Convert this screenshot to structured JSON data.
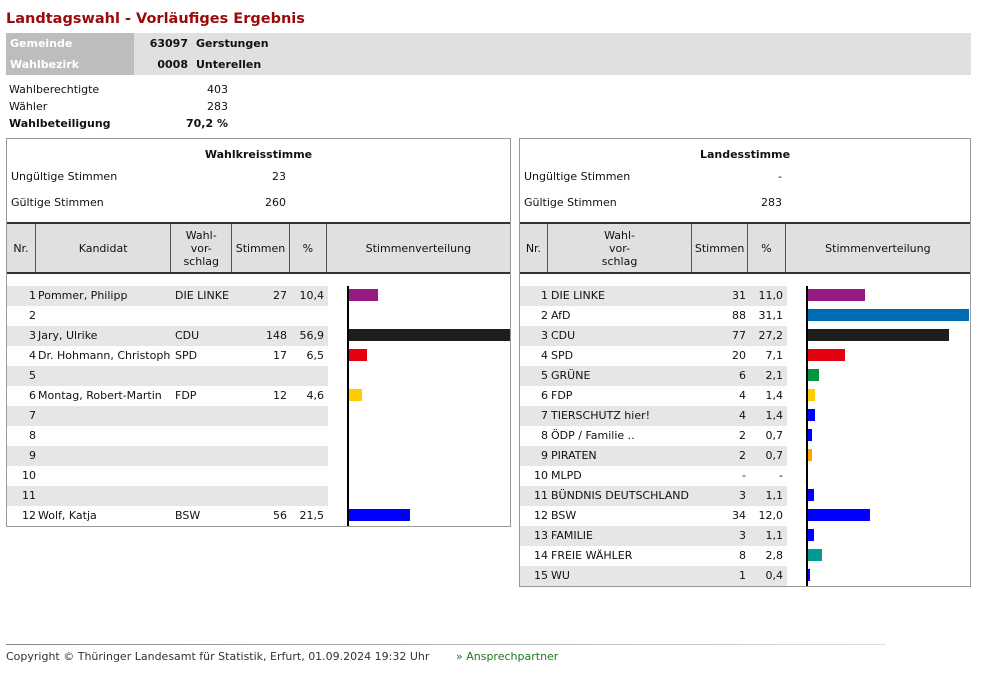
{
  "title": "Landtagswahl - Vorläufiges Ergebnis",
  "header": {
    "gemeinde_label": "Gemeinde",
    "gemeinde_nr": "63097",
    "gemeinde_name": "Gerstungen",
    "bezirk_label": "Wahlbezirk",
    "bezirk_nr": "0008",
    "bezirk_name": "Unterellen"
  },
  "stats": [
    {
      "label": "Wahlberechtigte",
      "value": "403"
    },
    {
      "label": "Wähler",
      "value": "283"
    },
    {
      "label": "Wahlbeteiligung",
      "value": "70,2 %"
    }
  ],
  "wahlkreis": {
    "title": "Wahlkreisstimme",
    "invalid_label": "Ungültige Stimmen",
    "invalid": "23",
    "valid_label": "Gültige Stimmen",
    "valid": "260",
    "columns": [
      "Nr.",
      "Kandidat",
      "Wahl-\nvor-\nschlag",
      "Stimmen",
      "%",
      "Stimmenverteilung"
    ],
    "rows": [
      {
        "nr": "1",
        "kandidat": "Pommer, Philipp",
        "partei": "DIE LINKE",
        "stimmen": "27",
        "pct": "10,4",
        "share": 10.4,
        "color": "#951b81"
      },
      {
        "nr": "2",
        "kandidat": "",
        "partei": "",
        "stimmen": "",
        "pct": "",
        "share": 0,
        "color": ""
      },
      {
        "nr": "3",
        "kandidat": "Jary, Ulrike",
        "partei": "CDU",
        "stimmen": "148",
        "pct": "56,9",
        "share": 56.9,
        "color": "#1e1e1e"
      },
      {
        "nr": "4",
        "kandidat": "Dr. Hohmann, Christoph",
        "partei": "SPD",
        "stimmen": "17",
        "pct": "6,5",
        "share": 6.5,
        "color": "#e3000f"
      },
      {
        "nr": "5",
        "kandidat": "",
        "partei": "",
        "stimmen": "",
        "pct": "",
        "share": 0,
        "color": ""
      },
      {
        "nr": "6",
        "kandidat": "Montag, Robert-Martin",
        "partei": "FDP",
        "stimmen": "12",
        "pct": "4,6",
        "share": 4.6,
        "color": "#ffcc00"
      },
      {
        "nr": "7",
        "kandidat": "",
        "partei": "",
        "stimmen": "",
        "pct": "",
        "share": 0,
        "color": ""
      },
      {
        "nr": "8",
        "kandidat": "",
        "partei": "",
        "stimmen": "",
        "pct": "",
        "share": 0,
        "color": ""
      },
      {
        "nr": "9",
        "kandidat": "",
        "partei": "",
        "stimmen": "",
        "pct": "",
        "share": 0,
        "color": ""
      },
      {
        "nr": "10",
        "kandidat": "",
        "partei": "",
        "stimmen": "",
        "pct": "",
        "share": 0,
        "color": ""
      },
      {
        "nr": "11",
        "kandidat": "",
        "partei": "",
        "stimmen": "",
        "pct": "",
        "share": 0,
        "color": ""
      },
      {
        "nr": "12",
        "kandidat": "Wolf, Katja",
        "partei": "BSW",
        "stimmen": "56",
        "pct": "21,5",
        "share": 21.5,
        "color": "#0000ff"
      }
    ]
  },
  "landes": {
    "title": "Landesstimme",
    "invalid_label": "Ungültige Stimmen",
    "invalid": "-",
    "valid_label": "Gültige Stimmen",
    "valid": "283",
    "columns": [
      "Nr.",
      "Wahl-\nvor-\nschlag",
      "Stimmen",
      "%",
      "Stimmenverteilung"
    ],
    "rows": [
      {
        "nr": "1",
        "partei": "DIE LINKE",
        "stimmen": "31",
        "pct": "11,0",
        "share": 11.0,
        "color": "#951b81"
      },
      {
        "nr": "2",
        "partei": "AfD",
        "stimmen": "88",
        "pct": "31,1",
        "share": 31.1,
        "color": "#006cb5"
      },
      {
        "nr": "3",
        "partei": "CDU",
        "stimmen": "77",
        "pct": "27,2",
        "share": 27.2,
        "color": "#1e1e1e"
      },
      {
        "nr": "4",
        "partei": "SPD",
        "stimmen": "20",
        "pct": "7,1",
        "share": 7.1,
        "color": "#e3000f"
      },
      {
        "nr": "5",
        "partei": "GRÜNE",
        "stimmen": "6",
        "pct": "2,1",
        "share": 2.1,
        "color": "#009640"
      },
      {
        "nr": "6",
        "partei": "FDP",
        "stimmen": "4",
        "pct": "1,4",
        "share": 1.4,
        "color": "#ffcc00"
      },
      {
        "nr": "7",
        "partei": "TIERSCHUTZ hier!",
        "stimmen": "4",
        "pct": "1,4",
        "share": 1.4,
        "color": "#0000ff"
      },
      {
        "nr": "8",
        "partei": "ÖDP / Familie ..",
        "stimmen": "2",
        "pct": "0,7",
        "share": 0.7,
        "color": "#0000ff"
      },
      {
        "nr": "9",
        "partei": "PIRATEN",
        "stimmen": "2",
        "pct": "0,7",
        "share": 0.7,
        "color": "#ffa500"
      },
      {
        "nr": "10",
        "partei": "MLPD",
        "stimmen": "-",
        "pct": "-",
        "share": 0,
        "color": ""
      },
      {
        "nr": "11",
        "partei": "BÜNDNIS DEUTSCHLAND",
        "stimmen": "3",
        "pct": "1,1",
        "share": 1.1,
        "color": "#0000ff"
      },
      {
        "nr": "12",
        "partei": "BSW",
        "stimmen": "34",
        "pct": "12,0",
        "share": 12.0,
        "color": "#0000ff"
      },
      {
        "nr": "13",
        "partei": "FAMILIE",
        "stimmen": "3",
        "pct": "1,1",
        "share": 1.1,
        "color": "#0000ff"
      },
      {
        "nr": "14",
        "partei": "FREIE WÄHLER",
        "stimmen": "8",
        "pct": "2,8",
        "share": 2.8,
        "color": "#009a93"
      },
      {
        "nr": "15",
        "partei": "WU",
        "stimmen": "1",
        "pct": "0,4",
        "share": 0.4,
        "color": "#0000ff"
      }
    ]
  },
  "footer": {
    "copyright": "Copyright © Thüringer Landesamt für Statistik, Erfurt, 01.09.2024 19:32 Uhr",
    "link": "» Ansprechpartner"
  }
}
